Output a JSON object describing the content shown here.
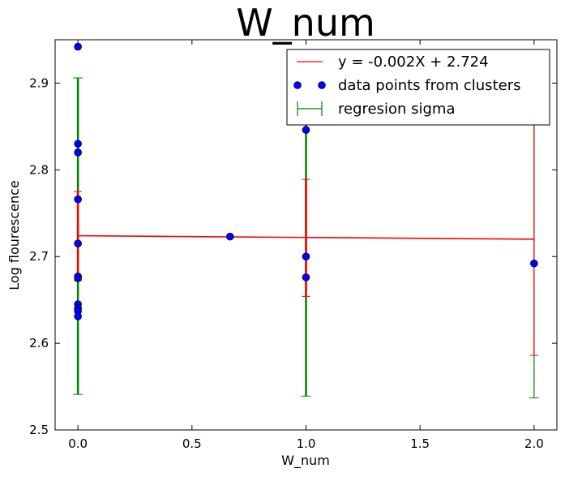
{
  "chart_data": {
    "type": "scatter",
    "title": "W_num",
    "xlabel": "W_num",
    "ylabel": "Log flourescence",
    "xlim": [
      -0.1,
      2.1
    ],
    "ylim": [
      2.5,
      2.95
    ],
    "x_ticks": [
      0.0,
      0.5,
      1.0,
      1.5,
      2.0
    ],
    "x_tick_labels": [
      "0.0",
      "0.5",
      "1.0",
      "1.5",
      "2.0"
    ],
    "y_ticks": [
      2.5,
      2.6,
      2.7,
      2.8,
      2.9
    ],
    "y_tick_labels": [
      "2.5",
      "2.6",
      "2.7",
      "2.8",
      "2.9"
    ],
    "grid": false,
    "legend_position": "top-right",
    "legend": [
      {
        "label": "y = -0.002X + 2.724",
        "kind": "line",
        "color": "#ff0000"
      },
      {
        "label": "data points from clusters",
        "kind": "marker",
        "color": "#0000ff"
      },
      {
        "label": "regresion sigma",
        "kind": "errorbar",
        "color": "#008000"
      }
    ],
    "regression": {
      "slope": -0.002,
      "intercept": 2.724,
      "x_range": [
        0,
        2
      ],
      "color": "#ff0000"
    },
    "points": [
      {
        "x": 0,
        "y": 2.942
      },
      {
        "x": 0,
        "y": 2.83
      },
      {
        "x": 0,
        "y": 2.82
      },
      {
        "x": 0,
        "y": 2.766
      },
      {
        "x": 0,
        "y": 2.715
      },
      {
        "x": 0,
        "y": 2.677
      },
      {
        "x": 0,
        "y": 2.675
      },
      {
        "x": 0,
        "y": 2.645
      },
      {
        "x": 0,
        "y": 2.64
      },
      {
        "x": 0,
        "y": 2.637
      },
      {
        "x": 0,
        "y": 2.631
      },
      {
        "x": 0.667,
        "y": 2.723
      },
      {
        "x": 1,
        "y": 2.846
      },
      {
        "x": 1,
        "y": 2.7
      },
      {
        "x": 1,
        "y": 2.676
      },
      {
        "x": 2,
        "y": 2.692
      }
    ],
    "sigma_bars": [
      {
        "x": 0,
        "low": 2.541,
        "high": 2.906,
        "color": "#008000"
      },
      {
        "x": 1,
        "low": 2.539,
        "high": 2.905,
        "color": "#008000"
      },
      {
        "x": 2,
        "low": 2.537,
        "high": 2.903,
        "color": "#008000"
      }
    ],
    "red_bars": [
      {
        "x": 0,
        "low": 2.672,
        "high": 2.775,
        "color": "#ff0000"
      },
      {
        "x": 1,
        "low": 2.654,
        "high": 2.789,
        "color": "#ff0000"
      },
      {
        "x": 2,
        "low": 2.586,
        "high": 2.86,
        "color": "#ff0000"
      }
    ]
  }
}
